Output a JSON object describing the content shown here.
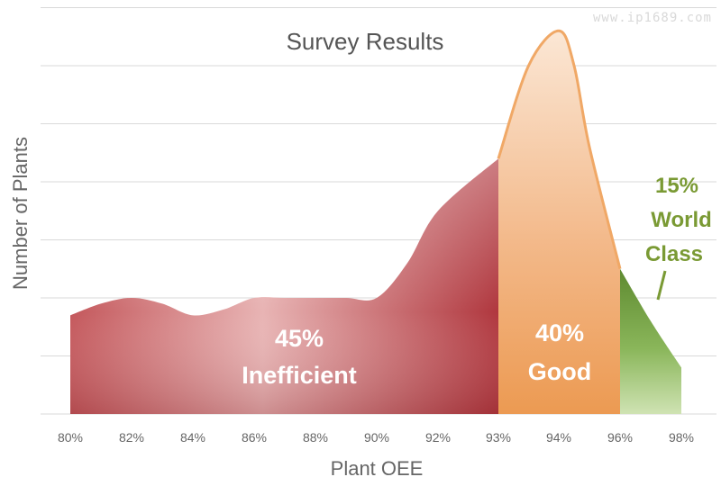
{
  "watermark": "www.ip1689.com",
  "chart_data": {
    "type": "area",
    "title": "Survey Results",
    "xlabel": "Plant OEE",
    "ylabel": "Number of Plants",
    "grid": true,
    "x": [
      "80%",
      "82%",
      "84%",
      "86%",
      "88%",
      "90%",
      "92%",
      "93%",
      "94%",
      "96%",
      "98%"
    ],
    "series": [
      {
        "x": [
          80,
          81,
          82,
          83,
          84,
          85,
          86,
          87,
          88,
          89,
          90,
          91,
          92,
          93,
          93.5,
          94,
          94.5,
          95,
          96,
          97,
          98
        ],
        "values": [
          1.7,
          1.9,
          2.0,
          1.9,
          1.7,
          1.8,
          2.0,
          2.0,
          2.0,
          2.0,
          2.0,
          2.6,
          3.5,
          4.4,
          6.0,
          6.6,
          6.0,
          4.6,
          2.5,
          1.6,
          0.8
        ]
      }
    ],
    "regions": [
      {
        "label": "45%",
        "sublabel": "Inefficient",
        "from": 80,
        "to": 93,
        "color": "#b94a4f"
      },
      {
        "label": "40%",
        "sublabel": "Good",
        "from": 93,
        "to": 96,
        "color": "#f0a060"
      },
      {
        "label": "15%",
        "sublabel": "World Class",
        "from": 96,
        "to": 98,
        "color": "#6e9a3c"
      }
    ],
    "annotation_color": "#7a9a34"
  }
}
